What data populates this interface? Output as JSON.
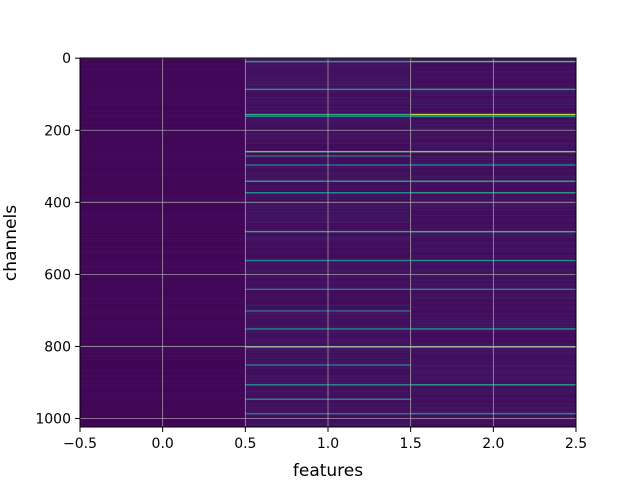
{
  "chart_data": {
    "type": "heatmap",
    "title": "",
    "xlabel": "features",
    "ylabel": "channels",
    "xlim": [
      -0.5,
      2.5
    ],
    "ylim": [
      1023.5,
      -0.5
    ],
    "n_channels": 1024,
    "columns": [
      0,
      1,
      2
    ],
    "grid": true,
    "colormap": "viridis",
    "xticks": [
      -0.5,
      0.0,
      0.5,
      1.0,
      1.5,
      2.0,
      2.5
    ],
    "xtick_labels": [
      "−0.5",
      "0.0",
      "0.5",
      "1.0",
      "1.5",
      "2.0",
      "2.5"
    ],
    "yticks": [
      0,
      200,
      400,
      600,
      800,
      1000
    ],
    "ytick_labels": [
      "0",
      "200",
      "400",
      "600",
      "800",
      "1000"
    ],
    "column0_value": 0.02,
    "bright_rows_col1": [
      {
        "row": 8,
        "v": 0.55
      },
      {
        "row": 85,
        "v": 0.5
      },
      {
        "row": 155,
        "v": 0.6
      },
      {
        "row": 160,
        "v": 0.45
      },
      {
        "row": 258,
        "v": 0.75
      },
      {
        "row": 270,
        "v": 0.35
      },
      {
        "row": 295,
        "v": 0.4
      },
      {
        "row": 340,
        "v": 0.55
      },
      {
        "row": 372,
        "v": 0.5
      },
      {
        "row": 480,
        "v": 0.6
      },
      {
        "row": 560,
        "v": 0.45
      },
      {
        "row": 640,
        "v": 0.4
      },
      {
        "row": 700,
        "v": 0.35
      },
      {
        "row": 750,
        "v": 0.45
      },
      {
        "row": 800,
        "v": 0.7
      },
      {
        "row": 850,
        "v": 0.4
      },
      {
        "row": 905,
        "v": 0.5
      },
      {
        "row": 945,
        "v": 0.45
      },
      {
        "row": 985,
        "v": 0.4
      }
    ],
    "bright_rows_col2": [
      {
        "row": 8,
        "v": 0.7
      },
      {
        "row": 85,
        "v": 0.55
      },
      {
        "row": 155,
        "v": 0.9
      },
      {
        "row": 160,
        "v": 0.5
      },
      {
        "row": 258,
        "v": 0.8
      },
      {
        "row": 295,
        "v": 0.45
      },
      {
        "row": 340,
        "v": 0.6
      },
      {
        "row": 372,
        "v": 0.55
      },
      {
        "row": 480,
        "v": 0.65
      },
      {
        "row": 560,
        "v": 0.5
      },
      {
        "row": 640,
        "v": 0.45
      },
      {
        "row": 750,
        "v": 0.5
      },
      {
        "row": 800,
        "v": 0.75
      },
      {
        "row": 905,
        "v": 0.55
      },
      {
        "row": 985,
        "v": 0.45
      }
    ]
  }
}
